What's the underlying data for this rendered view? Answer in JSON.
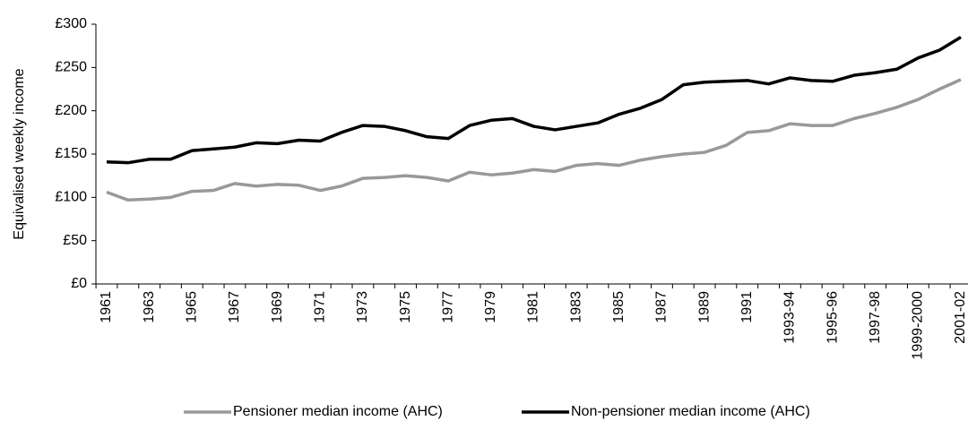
{
  "chart_data": {
    "type": "line",
    "y_label": "Equivalised weekly income",
    "categories": [
      "1961",
      null,
      "1963",
      null,
      "1965",
      null,
      "1967",
      null,
      "1969",
      null,
      "1971",
      null,
      "1973",
      null,
      "1975",
      null,
      "1977",
      null,
      "1979",
      null,
      "1981",
      null,
      "1983",
      null,
      "1985",
      null,
      "1987",
      null,
      "1989",
      null,
      "1991",
      null,
      "1993-94",
      null,
      "1995-96",
      null,
      "1997-98",
      null,
      "1999-2000",
      null,
      "2001-02"
    ],
    "series": [
      {
        "name": "Pensioner median income (AHC)",
        "color": "#999999",
        "values": [
          106,
          97,
          98,
          100,
          107,
          108,
          116,
          113,
          115,
          114,
          108,
          113,
          122,
          123,
          125,
          123,
          119,
          129,
          126,
          128,
          132,
          130,
          137,
          139,
          137,
          143,
          147,
          150,
          152,
          160,
          175,
          177,
          185,
          183,
          183,
          191,
          197,
          204,
          213,
          225,
          236
        ]
      },
      {
        "name": "Non-pensioner median income (AHC)",
        "color": "#000000",
        "values": [
          141,
          140,
          144,
          144,
          154,
          156,
          158,
          163,
          162,
          166,
          165,
          175,
          183,
          182,
          177,
          170,
          168,
          183,
          189,
          191,
          182,
          178,
          182,
          186,
          196,
          203,
          213,
          230,
          233,
          234,
          235,
          231,
          238,
          235,
          234,
          241,
          244,
          248,
          261,
          270,
          285
        ]
      }
    ],
    "ylim": [
      0,
      300
    ],
    "yticks": [
      {
        "value": 0,
        "label": "£0"
      },
      {
        "value": 50,
        "label": "£50"
      },
      {
        "value": 100,
        "label": "£100"
      },
      {
        "value": 150,
        "label": "£150"
      },
      {
        "value": 200,
        "label": "£200"
      },
      {
        "value": 250,
        "label": "£250"
      },
      {
        "value": 300,
        "label": "£300"
      }
    ],
    "grid": false
  }
}
